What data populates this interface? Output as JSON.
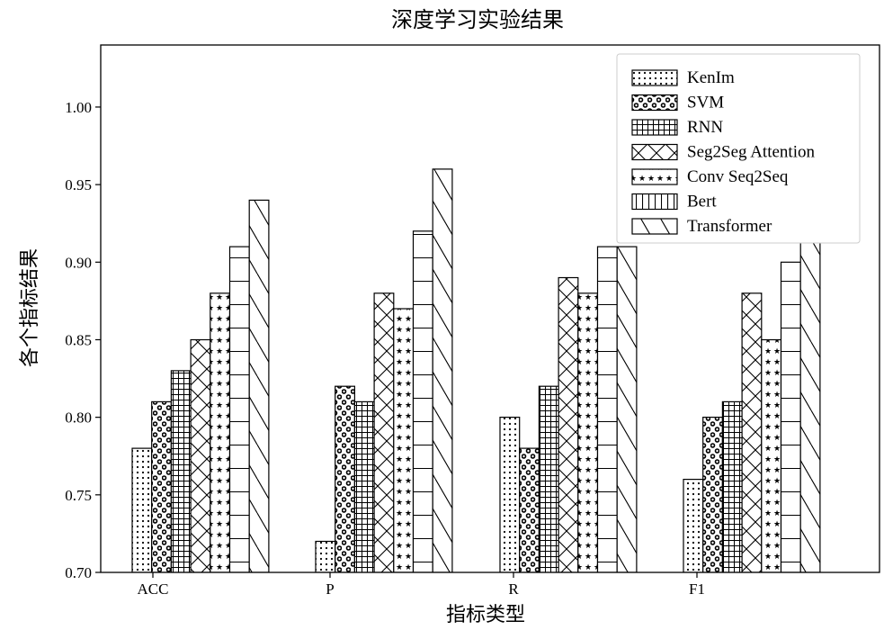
{
  "chart_data": {
    "type": "bar",
    "title": "深度学习实验结果",
    "xlabel": "指标类型",
    "ylabel": "各个指标结果",
    "categories": [
      "ACC",
      "P",
      "R",
      "F1"
    ],
    "ylim": [
      0.7,
      1.04
    ],
    "yticks": [
      "0.70",
      "0.75",
      "0.80",
      "0.85",
      "0.90",
      "0.95",
      "1.00"
    ],
    "legend_position": "top-right",
    "grid": false,
    "series": [
      {
        "name": "KenIm",
        "pattern": "dots",
        "values": [
          0.78,
          0.72,
          0.8,
          0.76
        ]
      },
      {
        "name": "SVM",
        "pattern": "circles",
        "values": [
          0.81,
          0.82,
          0.78,
          0.8
        ]
      },
      {
        "name": "RNN",
        "pattern": "grid",
        "values": [
          0.83,
          0.81,
          0.82,
          0.81
        ]
      },
      {
        "name": "Seg2Seg Attention",
        "pattern": "crosshatch",
        "values": [
          0.85,
          0.88,
          0.89,
          0.88
        ]
      },
      {
        "name": "Conv Seq2Seq",
        "pattern": "stars",
        "values": [
          0.88,
          0.87,
          0.88,
          0.85
        ]
      },
      {
        "name": "Bert",
        "pattern": "hlines",
        "values": [
          0.91,
          0.92,
          0.91,
          0.9
        ]
      },
      {
        "name": "Transformer",
        "pattern": "diag",
        "values": [
          0.94,
          0.96,
          0.91,
          0.93
        ]
      }
    ]
  }
}
